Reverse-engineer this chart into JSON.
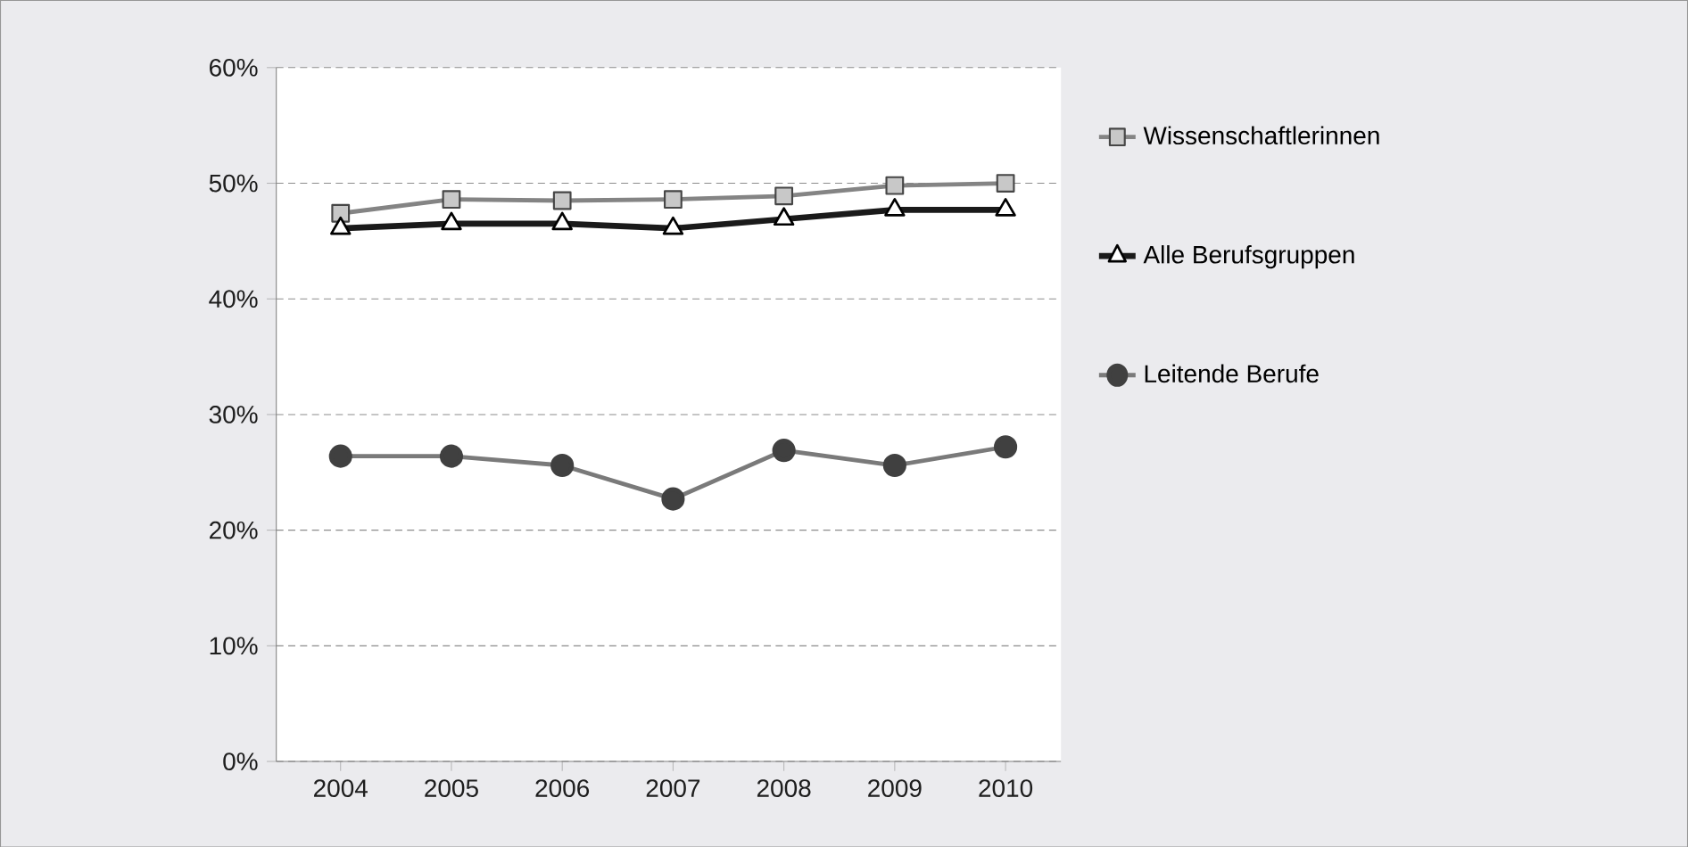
{
  "chart_data": {
    "type": "line",
    "categories": [
      "2004",
      "2005",
      "2006",
      "2007",
      "2008",
      "2009",
      "2010"
    ],
    "series": [
      {
        "name": "Wissenschaftlerinnen",
        "color": "#848484",
        "marker": "square",
        "values": [
          47.4,
          48.6,
          48.5,
          48.6,
          48.9,
          49.8,
          50.0
        ]
      },
      {
        "name": "Alle Berufsgruppen",
        "color": "#1a1a1a",
        "marker": "triangle",
        "values": [
          46.1,
          46.5,
          46.5,
          46.1,
          46.9,
          47.7,
          47.7
        ]
      },
      {
        "name": "Leitende Berufe",
        "color": "#7a7a7a",
        "marker": "circle",
        "values": [
          26.4,
          26.4,
          25.6,
          22.7,
          26.9,
          25.6,
          27.2
        ]
      }
    ],
    "ylim": [
      0,
      60
    ],
    "yticks": [
      {
        "value": 0,
        "label": "0%"
      },
      {
        "value": 10,
        "label": "10%"
      },
      {
        "value": 20,
        "label": "20%"
      },
      {
        "value": 30,
        "label": "30%"
      },
      {
        "value": 40,
        "label": "40%"
      },
      {
        "value": 50,
        "label": "50%"
      },
      {
        "value": 60,
        "label": "60%"
      }
    ],
    "grid": "y",
    "legend": "right",
    "line_style": "solid"
  }
}
